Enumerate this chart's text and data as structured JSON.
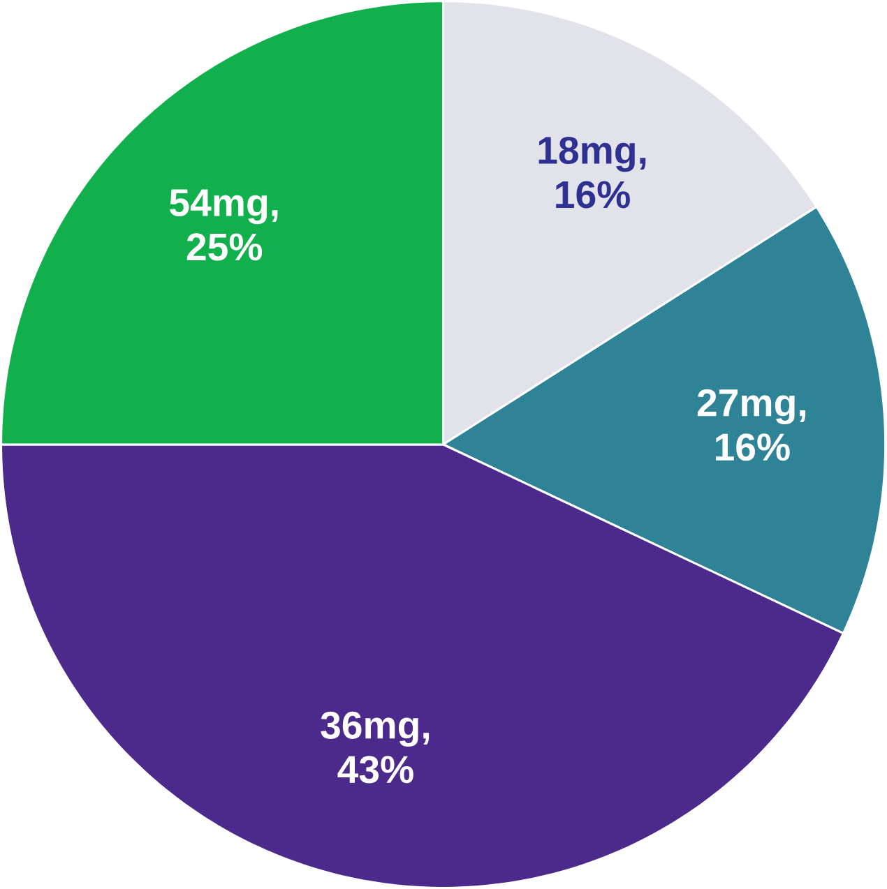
{
  "chart_data": {
    "type": "pie",
    "categories": [
      null,
      null,
      null,
      null
    ],
    "values": [
      16,
      16,
      43,
      25
    ],
    "colors": [
      "#e2e2ea",
      "#2e8496",
      "#4b2a8c",
      "#12b04c"
    ],
    "value_labels": [
      "18mg, 16%",
      "27mg, 16%",
      "36mg, 43%",
      "54mg, 25%"
    ]
  }
}
